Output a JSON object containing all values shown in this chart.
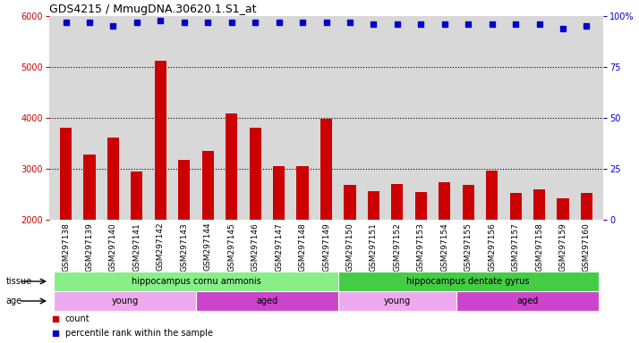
{
  "title": "GDS4215 / MmugDNA.30620.1.S1_at",
  "samples": [
    "GSM297138",
    "GSM297139",
    "GSM297140",
    "GSM297141",
    "GSM297142",
    "GSM297143",
    "GSM297144",
    "GSM297145",
    "GSM297146",
    "GSM297147",
    "GSM297148",
    "GSM297149",
    "GSM297150",
    "GSM297151",
    "GSM297152",
    "GSM297153",
    "GSM297154",
    "GSM297155",
    "GSM297156",
    "GSM297157",
    "GSM297158",
    "GSM297159",
    "GSM297160"
  ],
  "counts": [
    3800,
    3280,
    3620,
    2950,
    5130,
    3170,
    3350,
    4090,
    3800,
    3060,
    3060,
    3980,
    2680,
    2570,
    2700,
    2540,
    2740,
    2690,
    2960,
    2530,
    2600,
    2420,
    2520
  ],
  "percentile": [
    97,
    97,
    95,
    97,
    98,
    97,
    97,
    97,
    97,
    97,
    97,
    97,
    97,
    96,
    96,
    96,
    96,
    96,
    96,
    96,
    96,
    94,
    95
  ],
  "bar_color": "#cc0000",
  "dot_color": "#0000cc",
  "ylim_left": [
    2000,
    6000
  ],
  "ylim_right": [
    0,
    100
  ],
  "yticks_left": [
    2000,
    3000,
    4000,
    5000,
    6000
  ],
  "yticks_right": [
    0,
    25,
    50,
    75,
    100
  ],
  "plot_bg": "#d8d8d8",
  "tissue_groups": [
    {
      "label": "hippocampus cornu ammonis",
      "start": 0,
      "end": 12,
      "color": "#88ee88"
    },
    {
      "label": "hippocampus dentate gyrus",
      "start": 12,
      "end": 23,
      "color": "#44cc44"
    }
  ],
  "age_groups": [
    {
      "label": "young",
      "start": 0,
      "end": 6,
      "color": "#eeaaee"
    },
    {
      "label": "aged",
      "start": 6,
      "end": 12,
      "color": "#cc44cc"
    },
    {
      "label": "young",
      "start": 12,
      "end": 17,
      "color": "#eeaaee"
    },
    {
      "label": "aged",
      "start": 17,
      "end": 23,
      "color": "#cc44cc"
    }
  ],
  "grid_yticks": [
    3000,
    4000,
    5000
  ],
  "bar_width": 0.5,
  "dot_size": 4,
  "title_fontsize": 9,
  "tick_fontsize": 7,
  "label_fontsize": 7,
  "annot_fontsize": 7
}
